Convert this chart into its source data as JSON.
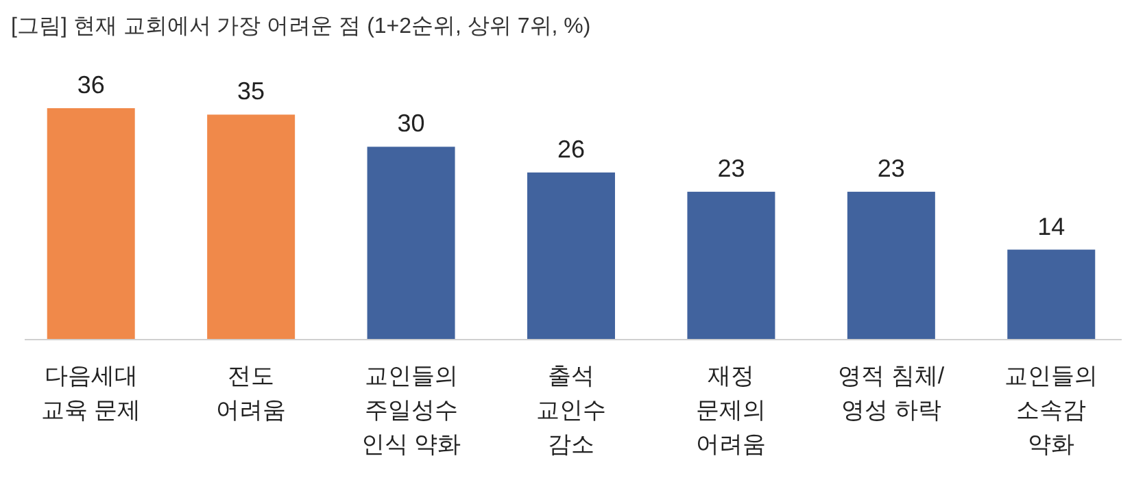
{
  "chart_data": {
    "type": "bar",
    "title": "[그림] 현재 교회에서 가장 어려운 점 (1+2순위, 상위 7위, %)",
    "categories": [
      "다음세대\n교육 문제",
      "전도\n어려움",
      "교인들의\n주일성수\n인식 약화",
      "출석\n교인수\n감소",
      "재정\n문제의\n어려움",
      "영적 침체/\n영성 하락",
      "교인들의\n소속감\n약화"
    ],
    "values": [
      36,
      35,
      30,
      26,
      23,
      23,
      14
    ],
    "colors": [
      "#f0894a",
      "#f0894a",
      "#41639e",
      "#41639e",
      "#41639e",
      "#41639e",
      "#41639e"
    ],
    "data_labels": true
  }
}
